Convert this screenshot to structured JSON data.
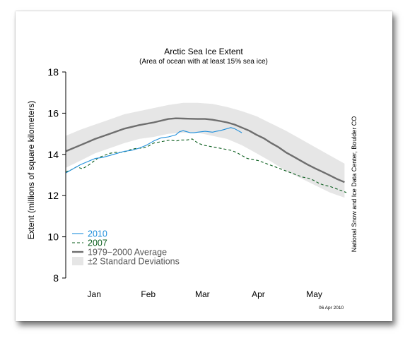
{
  "chart_data": {
    "type": "line",
    "title": "Arctic Sea Ice Extent",
    "subtitle": "(Area of ocean with at least 15% sea ice)",
    "ylabel": "Extent (millions of square kilometers)",
    "xlabel": "",
    "ylim": [
      8,
      18
    ],
    "xlim": [
      0,
      153
    ],
    "yticks": [
      8,
      10,
      12,
      14,
      16,
      18
    ],
    "xtick_labels": [
      {
        "label": "Jan",
        "x": 15.5
      },
      {
        "label": "Feb",
        "x": 45
      },
      {
        "label": "Mar",
        "x": 74.5
      },
      {
        "label": "Apr",
        "x": 105
      },
      {
        "label": "May",
        "x": 135.5
      }
    ],
    "grid": false,
    "legend_position": "bottom-left",
    "credit": "National Snow and Ice Data Center, Boulder CO",
    "date_stamp": "06 Apr 2010",
    "colors": {
      "2010": "#1f8fdb",
      "2007": "#0b5e1e",
      "average": "#6e6e6e",
      "band": "#e6e6e6"
    },
    "series": [
      {
        "name": "2010",
        "x": [
          0,
          4,
          8,
          12,
          16,
          20,
          24,
          28,
          32,
          36,
          40,
          44,
          48,
          52,
          56,
          60,
          62,
          64,
          66,
          68,
          70,
          72,
          74,
          76,
          78,
          80,
          82,
          84,
          86,
          88,
          90,
          92,
          94,
          96
        ],
        "y": [
          13.1,
          13.3,
          13.5,
          13.65,
          13.8,
          13.85,
          13.95,
          14.05,
          14.15,
          14.2,
          14.3,
          14.45,
          14.65,
          14.8,
          14.85,
          14.95,
          15.1,
          15.15,
          15.1,
          15.05,
          15.05,
          15.08,
          15.1,
          15.12,
          15.1,
          15.08,
          15.12,
          15.15,
          15.2,
          15.25,
          15.3,
          15.25,
          15.15,
          15.05
        ]
      },
      {
        "name": "2007",
        "x": [
          0,
          3,
          6,
          9,
          12,
          15,
          18,
          21,
          24,
          27,
          30,
          33,
          36,
          39,
          42,
          45,
          48,
          51,
          54,
          57,
          60,
          63,
          66,
          69,
          72,
          75,
          78,
          81,
          84,
          87,
          90,
          93,
          96,
          99,
          102,
          105,
          108,
          111,
          114,
          117,
          120,
          123,
          126,
          129,
          132,
          135,
          138,
          141,
          144,
          147,
          150,
          153
        ],
        "y": [
          13.15,
          13.25,
          13.4,
          13.3,
          13.45,
          13.65,
          13.85,
          13.95,
          14.05,
          14.1,
          14.1,
          14.15,
          14.25,
          14.3,
          14.3,
          14.4,
          14.55,
          14.6,
          14.65,
          14.7,
          14.65,
          14.7,
          14.7,
          14.75,
          14.55,
          14.45,
          14.4,
          14.35,
          14.3,
          14.25,
          14.2,
          14.1,
          13.95,
          13.8,
          13.75,
          13.7,
          13.6,
          13.5,
          13.4,
          13.3,
          13.2,
          13.1,
          13.0,
          12.9,
          12.85,
          12.75,
          12.6,
          12.5,
          12.45,
          12.35,
          12.25,
          12.15
        ]
      },
      {
        "name": "1979−2000 Average",
        "x": [
          0,
          8,
          16,
          24,
          32,
          40,
          48,
          56,
          60,
          64,
          68,
          72,
          76,
          80,
          84,
          88,
          92,
          96,
          100,
          104,
          108,
          112,
          116,
          120,
          124,
          128,
          132,
          136,
          140,
          144,
          148,
          152
        ],
        "y": [
          14.15,
          14.45,
          14.75,
          15.0,
          15.25,
          15.42,
          15.55,
          15.72,
          15.75,
          15.74,
          15.73,
          15.72,
          15.72,
          15.68,
          15.62,
          15.55,
          15.45,
          15.3,
          15.15,
          14.95,
          14.78,
          14.55,
          14.35,
          14.1,
          13.9,
          13.7,
          13.5,
          13.32,
          13.15,
          12.98,
          12.8,
          12.65
        ]
      }
    ],
    "band": {
      "name": "±2 Standard Deviations",
      "x": [
        0,
        8,
        16,
        24,
        32,
        40,
        48,
        56,
        64,
        72,
        80,
        88,
        96,
        104,
        112,
        120,
        128,
        136,
        144,
        152
      ],
      "upper": [
        14.9,
        15.2,
        15.45,
        15.7,
        15.95,
        16.1,
        16.25,
        16.4,
        16.5,
        16.5,
        16.45,
        16.3,
        16.1,
        15.85,
        15.5,
        15.15,
        14.75,
        14.35,
        13.95,
        13.55
      ],
      "lower": [
        13.35,
        13.7,
        14.05,
        14.3,
        14.55,
        14.75,
        14.85,
        15.0,
        15.05,
        15.05,
        14.9,
        14.75,
        14.45,
        14.05,
        13.65,
        13.2,
        12.85,
        12.5,
        12.15,
        11.9
      ]
    }
  }
}
